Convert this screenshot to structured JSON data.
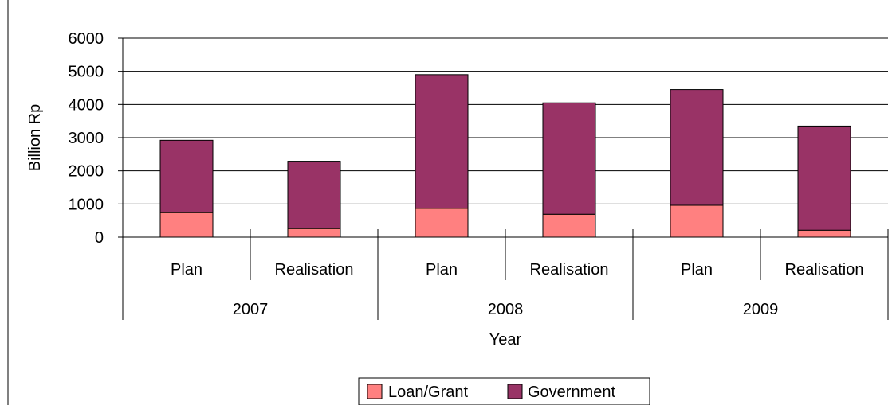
{
  "chart_data": {
    "type": "bar",
    "stacked": true,
    "title": "",
    "xlabel": "Year",
    "ylabel": "Billion Rp",
    "ylim": [
      0,
      6000
    ],
    "yticks": [
      0,
      1000,
      2000,
      3000,
      4000,
      5000,
      6000
    ],
    "grid": true,
    "legend_position": "bottom",
    "groups": [
      {
        "label": "2007",
        "categories": [
          "Plan",
          "Realisation"
        ]
      },
      {
        "label": "2008",
        "categories": [
          "Plan",
          "Realisation"
        ]
      },
      {
        "label": "2009",
        "categories": [
          "Plan",
          "Realisation"
        ]
      }
    ],
    "categories": [
      "Plan",
      "Realisation",
      "Plan",
      "Realisation",
      "Plan",
      "Realisation"
    ],
    "series": [
      {
        "name": "Loan/Grant",
        "color": "#ff8080",
        "values": [
          740,
          260,
          870,
          690,
          960,
          210
        ]
      },
      {
        "name": "Government",
        "color": "#993366",
        "values": [
          2180,
          2030,
          4030,
          3360,
          3490,
          3140
        ]
      }
    ]
  }
}
